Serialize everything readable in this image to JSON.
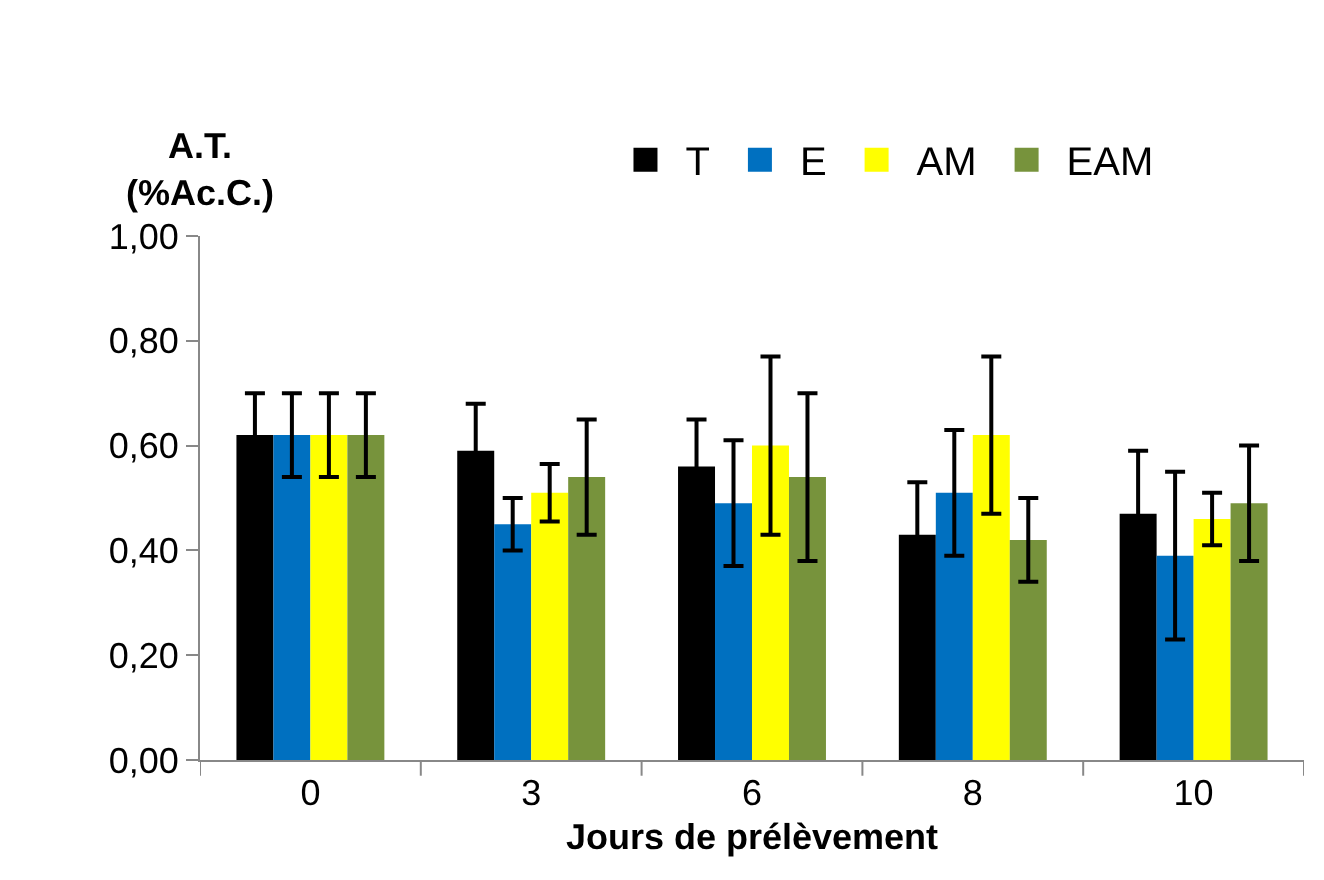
{
  "chart_data": {
    "type": "bar",
    "ylabel": "A.T.\n(%Ac.C.)",
    "xlabel": "Jours de prélèvement",
    "categories": [
      "0",
      "3",
      "6",
      "8",
      "10"
    ],
    "series": [
      {
        "name": "T",
        "color": "#000000",
        "values": [
          0.62,
          0.59,
          0.56,
          0.43,
          0.47
        ],
        "errors": [
          0.08,
          0.09,
          0.09,
          0.1,
          0.12
        ]
      },
      {
        "name": "E",
        "color": "#0070c0",
        "values": [
          0.62,
          0.45,
          0.49,
          0.51,
          0.39
        ],
        "errors": [
          0.08,
          0.05,
          0.12,
          0.12,
          0.16
        ]
      },
      {
        "name": "AM",
        "color": "#ffff00",
        "values": [
          0.62,
          0.51,
          0.6,
          0.62,
          0.46
        ],
        "errors": [
          0.08,
          0.055,
          0.17,
          0.15,
          0.05
        ]
      },
      {
        "name": "EAM",
        "color": "#77933c",
        "values": [
          0.62,
          0.54,
          0.54,
          0.42,
          0.49
        ],
        "errors": [
          0.08,
          0.11,
          0.16,
          0.08,
          0.11
        ]
      }
    ],
    "ylim": [
      0,
      1
    ],
    "yticks": [
      {
        "value": 0,
        "label": "0,00"
      },
      {
        "value": 0.2,
        "label": "0,20"
      },
      {
        "value": 0.4,
        "label": "0,40"
      },
      {
        "value": 0.6,
        "label": "0,60"
      },
      {
        "value": 0.8,
        "label": "0,80"
      },
      {
        "value": 1,
        "label": "1,00"
      }
    ],
    "legend": "top"
  }
}
